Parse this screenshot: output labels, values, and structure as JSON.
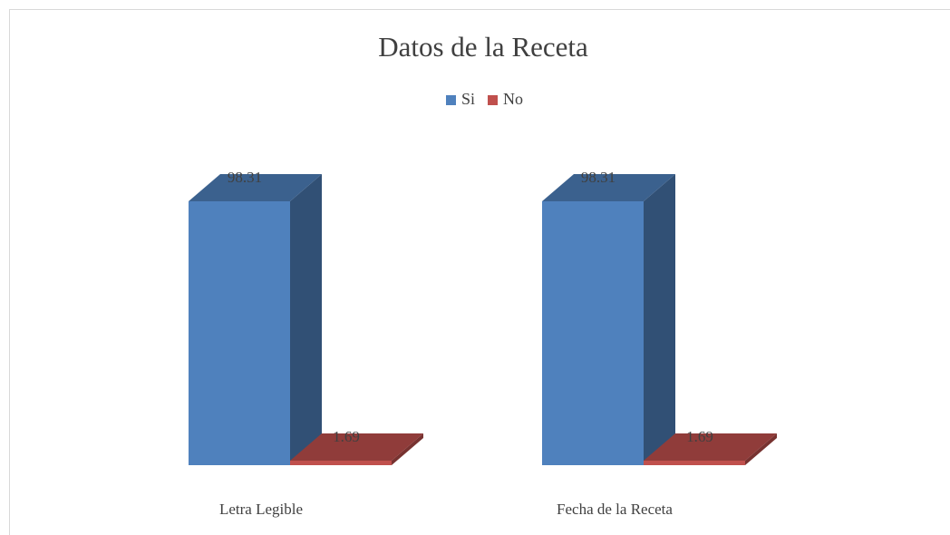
{
  "chart_data": {
    "type": "bar3d",
    "title": "Datos de la Receta",
    "categories": [
      "Letra Legible",
      "Fecha de la Receta"
    ],
    "series": [
      {
        "name": "Si",
        "color": "#4f81bd",
        "values": [
          98.31,
          98.31
        ]
      },
      {
        "name": "No",
        "color": "#c0504d",
        "values": [
          1.69,
          1.69
        ]
      }
    ],
    "legend": "top"
  }
}
